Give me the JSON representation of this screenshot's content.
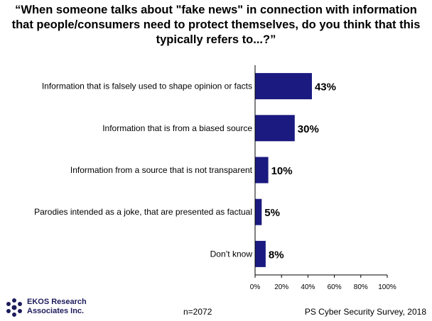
{
  "chart_data": {
    "type": "bar",
    "orientation": "horizontal",
    "title": "“When someone talks about \"fake news\" in connection with information that people/consumers need to protect themselves, do you think that this typically refers to...?”",
    "categories": [
      "Information that is falsely used to shape opinion or facts",
      "Information that is from a biased source",
      "Information from a source that is not transparent",
      "Parodies intended as a joke, that are presented as factual",
      "Don’t know"
    ],
    "values": [
      43,
      30,
      10,
      5,
      8
    ],
    "value_labels": [
      "43%",
      "30%",
      "10%",
      "5%",
      "8%"
    ],
    "xlim": [
      0,
      100
    ],
    "x_ticks": [
      "0%",
      "20%",
      "40%",
      "60%",
      "80%",
      "100%"
    ],
    "grid": false,
    "bar_color": "#1a1a80"
  },
  "footer": {
    "sample": "n=2072",
    "source": "PS Cyber Security Survey, 2018",
    "logo_text": "EKOS Research\nAssociates Inc."
  }
}
